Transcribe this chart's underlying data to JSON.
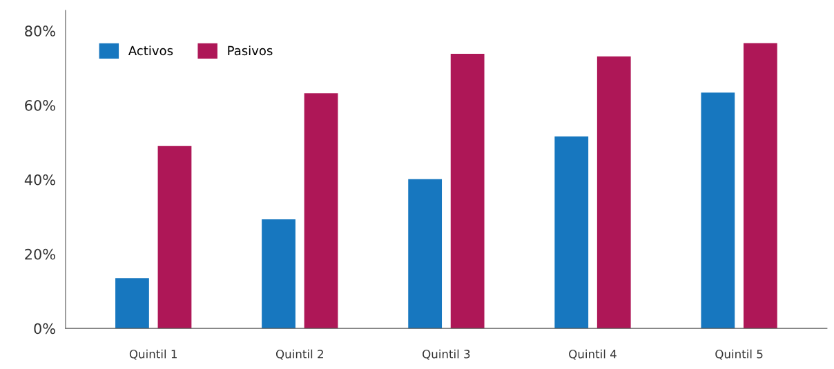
{
  "chart_data": {
    "type": "bar",
    "categories": [
      "Quintil 1",
      "Quintil 2",
      "Quintil 3",
      "Quintil 4",
      "Quintil 5"
    ],
    "series": [
      {
        "name": "Activos",
        "color": "#1777bf",
        "values": [
          13.5,
          29.3,
          40.1,
          51.6,
          63.4
        ]
      },
      {
        "name": "Pasivos",
        "color": "#ae1757",
        "values": [
          49.0,
          63.2,
          73.8,
          73.1,
          76.7
        ]
      }
    ],
    "ylim": [
      0,
      85.5
    ],
    "yticks": [
      {
        "value": 0,
        "label": "0%"
      },
      {
        "value": 20,
        "label": "20%"
      },
      {
        "value": 40,
        "label": "40%"
      },
      {
        "value": 60,
        "label": "60%"
      },
      {
        "value": 80,
        "label": "80%"
      }
    ],
    "grid": false,
    "legend": "top left"
  }
}
